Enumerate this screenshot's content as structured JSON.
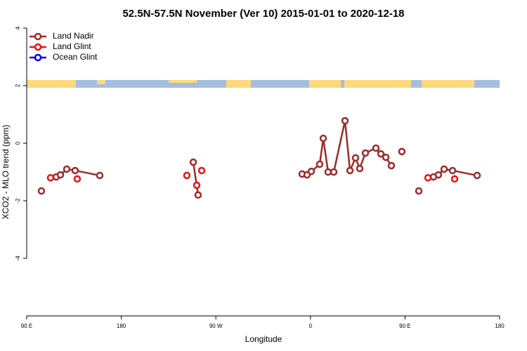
{
  "chart_data": {
    "type": "line",
    "title": "52.5N-57.5N November (Ver 10)   2015-01-01 to 2020-12-18",
    "x_label": "Longitude",
    "y_label": "XCO2 - MLO trend (ppm)",
    "xlim": [
      90,
      540
    ],
    "ylim": [
      -6,
      4
    ],
    "xticks": [
      {
        "value": 90,
        "label": "90 E"
      },
      180,
      {
        "value": 270,
        "label": "90 W"
      },
      {
        "value": 360,
        "label": "0"
      },
      {
        "value": 450,
        "label": "90 E"
      },
      {
        "value": 540,
        "label": "180"
      }
    ],
    "yticks": [
      -4,
      -2,
      0,
      2,
      4
    ],
    "legend": "top-left",
    "series": [
      {
        "name": "Land Nadir",
        "color": "#9e2a2b",
        "lines": true,
        "x": [
          104.0,
          null,
          118.1,
          122.1,
          128.1,
          136.1,
          159.5,
          null,
          248.5,
          253.1,
          null,
          352.1,
          356.8,
          360.8,
          368.8,
          372.2,
          376.8,
          382.2,
          392.9,
          397.6,
          402.9,
          406.9,
          412.3,
          422.3,
          427.0,
          431.7,
          437.0,
          null,
          447.0,
          null,
          463.1,
          null,
          477.1,
          481.8,
          487.2,
          495.2,
          518.6
        ],
        "values": [
          -1.66,
          null,
          -1.17,
          -1.1,
          -0.9,
          -0.95,
          -1.12,
          null,
          -0.66,
          -1.8,
          null,
          -1.07,
          -1.1,
          -0.98,
          -0.73,
          0.17,
          -1.0,
          -1.0,
          0.78,
          -0.95,
          -0.51,
          -0.88,
          -0.34,
          -0.17,
          -0.37,
          -0.49,
          -0.78,
          null,
          -0.29,
          null,
          -1.66,
          null,
          -1.17,
          -1.1,
          -0.9,
          -0.95,
          -1.12
        ]
      },
      {
        "name": "Land Glint",
        "color": "#ee1111",
        "lines": false,
        "x": [
          112.7,
          138.1,
          242.4,
          251.8,
          256.5,
          471.8,
          497.2
        ],
        "values": [
          -1.2,
          -1.24,
          -1.12,
          -1.46,
          -0.95,
          -1.2,
          -1.24
        ]
      },
      {
        "name": "Ocean Glint",
        "color": "#0000ee",
        "lines": false,
        "x": [],
        "values": []
      }
    ]
  }
}
